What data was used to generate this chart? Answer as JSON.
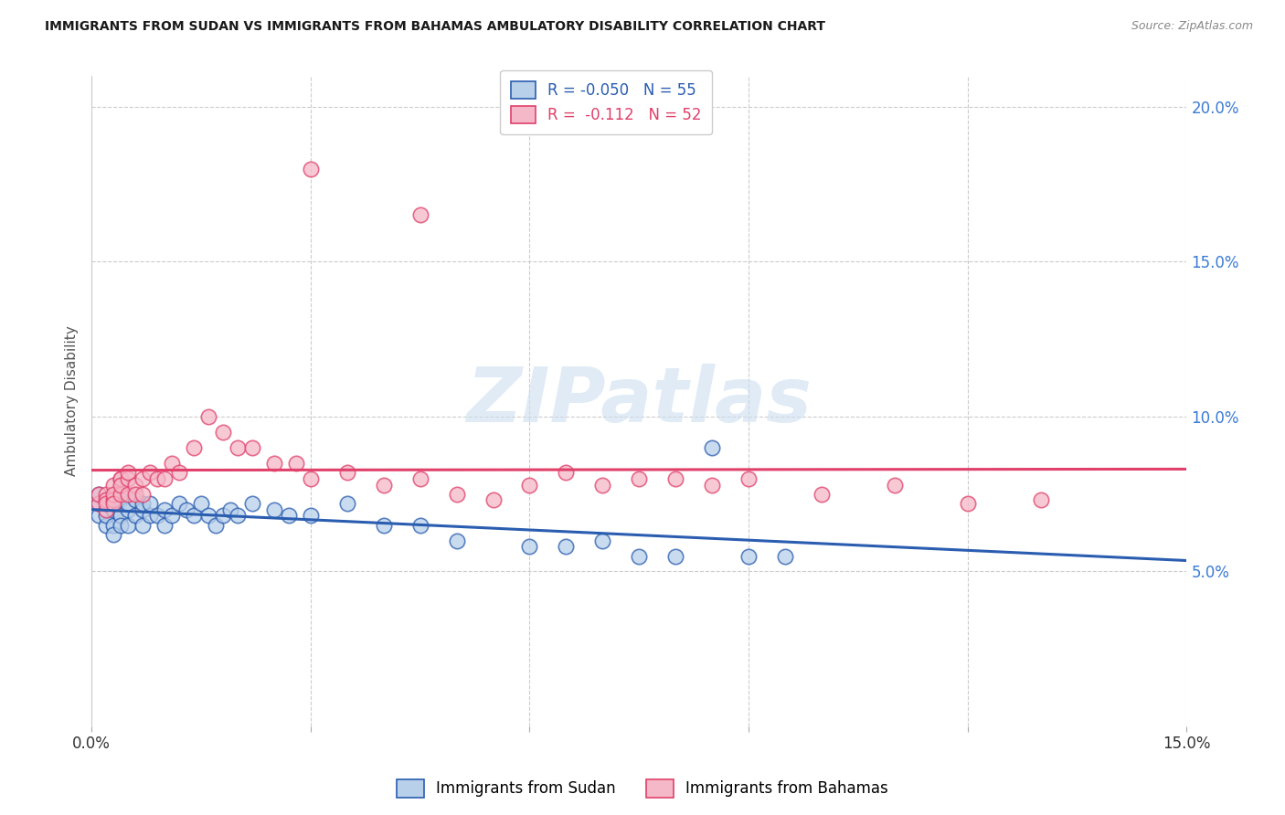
{
  "title": "IMMIGRANTS FROM SUDAN VS IMMIGRANTS FROM BAHAMAS AMBULATORY DISABILITY CORRELATION CHART",
  "source": "Source: ZipAtlas.com",
  "ylabel": "Ambulatory Disability",
  "xlim": [
    0.0,
    0.15
  ],
  "ylim": [
    0.0,
    0.21
  ],
  "legend1_label": "R = -0.050   N = 55",
  "legend2_label": "R =  -0.112   N = 52",
  "legend1_fill": "#b8d0ea",
  "legend2_fill": "#f5b8c8",
  "trendline1_color": "#2a5db0",
  "trendline2_color": "#e0406a",
  "watermark_color": "#ccdff0",
  "grid_color": "#cccccc",
  "background_color": "#ffffff",
  "sudan_x": [
    0.001,
    0.001,
    0.001,
    0.002,
    0.002,
    0.002,
    0.002,
    0.003,
    0.003,
    0.003,
    0.003,
    0.003,
    0.004,
    0.004,
    0.004,
    0.004,
    0.005,
    0.005,
    0.005,
    0.006,
    0.006,
    0.007,
    0.007,
    0.007,
    0.008,
    0.008,
    0.009,
    0.01,
    0.01,
    0.011,
    0.012,
    0.013,
    0.014,
    0.015,
    0.016,
    0.017,
    0.018,
    0.019,
    0.02,
    0.022,
    0.025,
    0.027,
    0.03,
    0.035,
    0.04,
    0.045,
    0.05,
    0.06,
    0.065,
    0.07,
    0.075,
    0.08,
    0.085,
    0.09,
    0.095
  ],
  "sudan_y": [
    0.068,
    0.072,
    0.075,
    0.065,
    0.07,
    0.073,
    0.068,
    0.072,
    0.065,
    0.07,
    0.062,
    0.073,
    0.068,
    0.073,
    0.068,
    0.065,
    0.07,
    0.072,
    0.065,
    0.073,
    0.068,
    0.07,
    0.065,
    0.072,
    0.068,
    0.072,
    0.068,
    0.07,
    0.065,
    0.068,
    0.072,
    0.07,
    0.068,
    0.072,
    0.068,
    0.065,
    0.068,
    0.07,
    0.068,
    0.072,
    0.07,
    0.068,
    0.068,
    0.072,
    0.065,
    0.065,
    0.06,
    0.058,
    0.058,
    0.06,
    0.055,
    0.055,
    0.09,
    0.055,
    0.055
  ],
  "bahamas_x": [
    0.001,
    0.001,
    0.002,
    0.002,
    0.002,
    0.002,
    0.003,
    0.003,
    0.003,
    0.003,
    0.004,
    0.004,
    0.004,
    0.004,
    0.005,
    0.005,
    0.005,
    0.006,
    0.006,
    0.007,
    0.007,
    0.008,
    0.009,
    0.01,
    0.011,
    0.012,
    0.014,
    0.016,
    0.018,
    0.02,
    0.022,
    0.025,
    0.028,
    0.03,
    0.035,
    0.04,
    0.045,
    0.05,
    0.055,
    0.06,
    0.065,
    0.07,
    0.075,
    0.08,
    0.085,
    0.09,
    0.1,
    0.11,
    0.12,
    0.13,
    0.045,
    0.03
  ],
  "bahamas_y": [
    0.072,
    0.075,
    0.07,
    0.075,
    0.073,
    0.072,
    0.073,
    0.078,
    0.075,
    0.072,
    0.08,
    0.08,
    0.075,
    0.078,
    0.08,
    0.075,
    0.082,
    0.078,
    0.075,
    0.08,
    0.075,
    0.082,
    0.08,
    0.08,
    0.085,
    0.082,
    0.09,
    0.1,
    0.095,
    0.09,
    0.09,
    0.085,
    0.085,
    0.08,
    0.082,
    0.078,
    0.08,
    0.075,
    0.073,
    0.078,
    0.082,
    0.078,
    0.08,
    0.08,
    0.078,
    0.08,
    0.075,
    0.078,
    0.072,
    0.073,
    0.165,
    0.18
  ]
}
